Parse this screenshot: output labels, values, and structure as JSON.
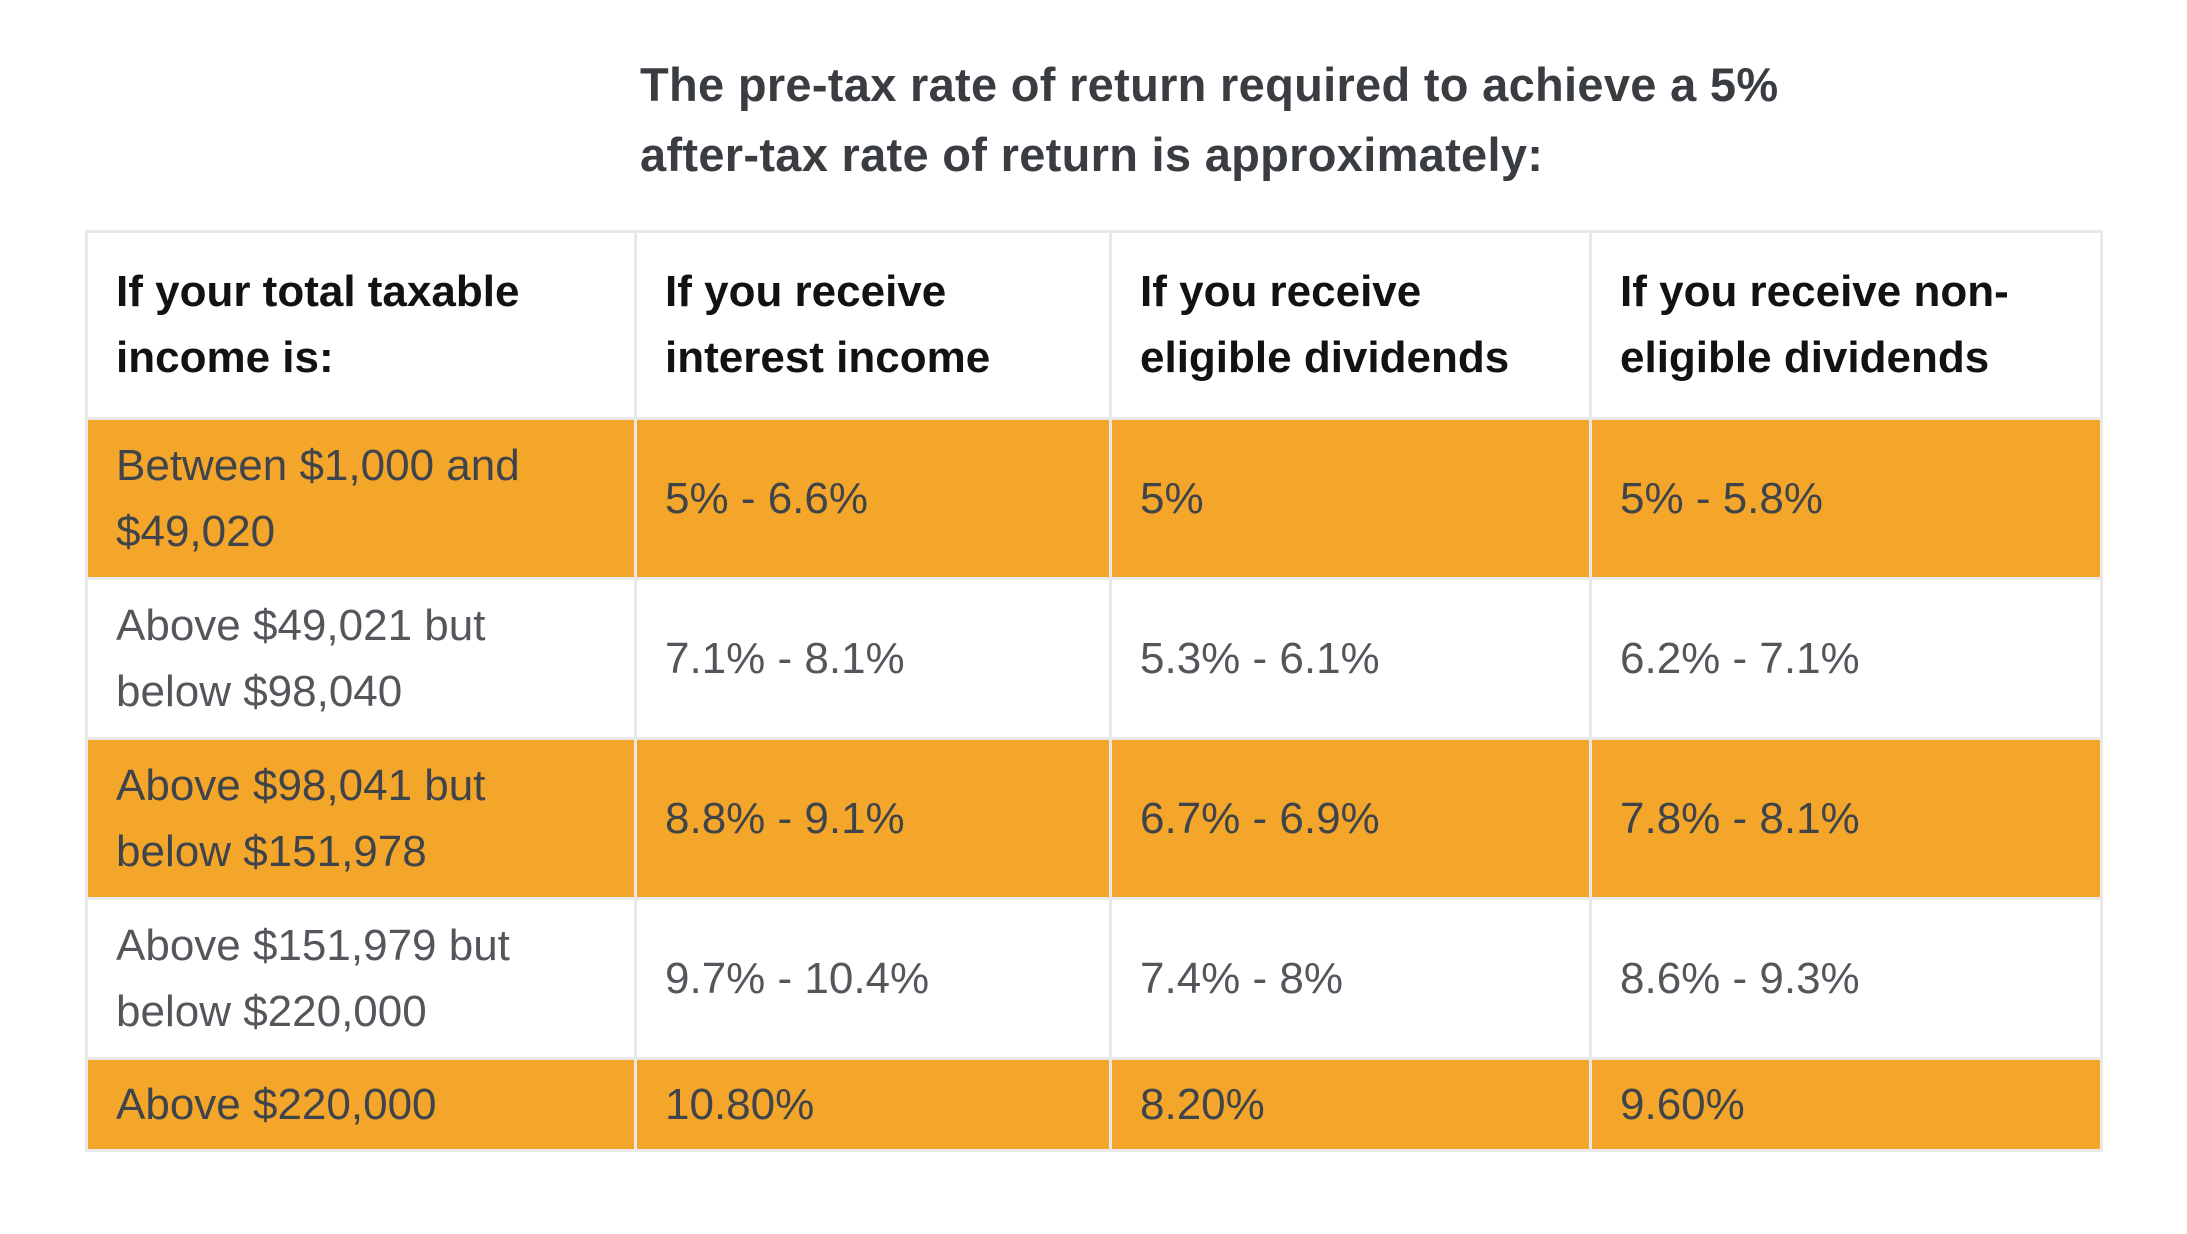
{
  "title": {
    "line1": "The pre-tax rate of return required to achieve a 5%",
    "line2": "after-tax rate of return is approximately:"
  },
  "table": {
    "headers": [
      "If your total taxable income is:",
      "If you receive interest income",
      "If you receive eligible dividends",
      "If you receive non-eligible dividends"
    ],
    "rows": [
      [
        "Between $1,000 and $49,020",
        "5% - 6.6%",
        "5%",
        "5% - 5.8%"
      ],
      [
        "Above $49,021 but below $98,040",
        "7.1% - 8.1%",
        "5.3% - 6.1%",
        "6.2% - 7.1%"
      ],
      [
        "Above $98,041 but below $151,978",
        "8.8% - 9.1%",
        "6.7% - 6.9%",
        "7.8% - 8.1%"
      ],
      [
        "Above $151,979 but below $220,000",
        "9.7% - 10.4%",
        "7.4% - 8%",
        "8.6% - 9.3%"
      ],
      [
        "Above $220,000",
        "10.80%",
        "8.20%",
        "9.60%"
      ]
    ],
    "highlighted_row_indexes": [
      0,
      2,
      4
    ]
  },
  "colors": {
    "row_highlight": "#F4A62B",
    "grid_line": "#E9E9E9",
    "title_text": "#393D41",
    "header_text": "#121212",
    "body_text": "#53575C",
    "highlight_row_text": "#3F444A"
  }
}
